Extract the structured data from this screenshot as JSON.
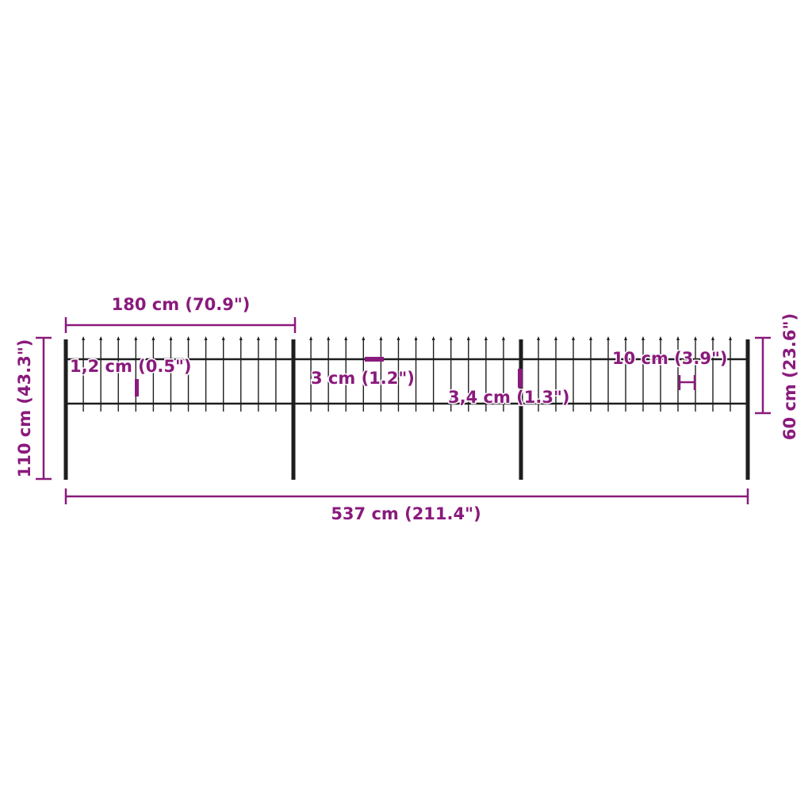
{
  "colors": {
    "dimension": "#8a1a7c",
    "fence": "#1e1e1e",
    "background": "#ffffff"
  },
  "fence": {
    "panels": 3,
    "pickets_per_panel": 12
  },
  "dimensions": {
    "panel_width": "180 cm (70.9\")",
    "total_width": "537 cm (211.4\")",
    "total_height": "110 cm (43.3\")",
    "panel_height": "60 cm (23.6\")",
    "picket_thickness": "1,2 cm (0.5\")",
    "rail_height": "3 cm (1.2\")",
    "post_thickness": "3,4 cm (1.3\")",
    "picket_spacing": "10 cm (3.9\")"
  }
}
